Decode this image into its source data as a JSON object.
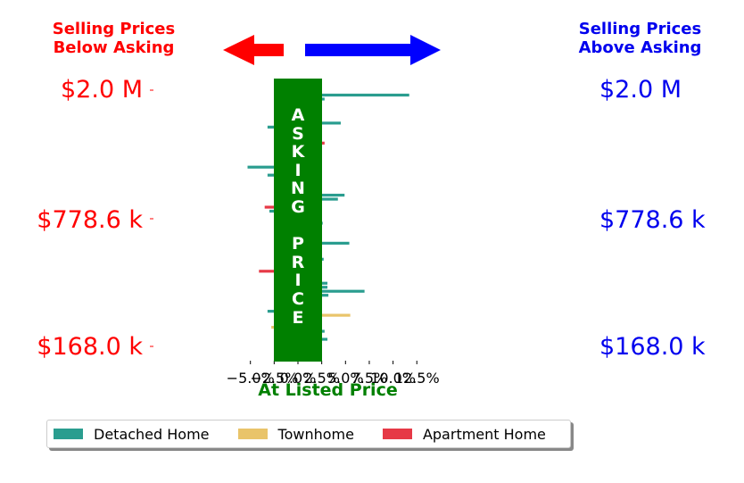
{
  "header": {
    "left_label": "Selling Prices\nBelow Asking",
    "right_label": "Selling Prices\nAbove Asking",
    "left_color": "#ff0000",
    "right_color": "#0000ee"
  },
  "arrows": {
    "left": "left-arrow",
    "right": "right-arrow",
    "left_color": "#ff0000",
    "right_color": "#0000ff"
  },
  "price_labels": {
    "top": "$2.0 M",
    "middle": "$778.6 k",
    "bottom": "$168.0 k",
    "left_color": "#ff0000",
    "right_color": "#0000ee"
  },
  "asking_band": {
    "text": "A\nS\nK\nI\nN\nG\n\nP\nR\nI\nC\nE",
    "color": "#008000"
  },
  "chart_data": {
    "type": "bar",
    "orientation": "horizontal",
    "xlabel": "At Listed Price",
    "xlim": [
      -6.5,
      13.2
    ],
    "xticks": [
      -5.0,
      -2.5,
      0.0,
      2.5,
      5.0,
      7.5,
      10.0,
      12.5
    ],
    "xtick_labels": [
      "−5.0%",
      "−2.5%",
      "0.0%",
      "2.5%",
      "5.0%",
      "7.5%",
      "10.0%",
      "12.5%"
    ],
    "colors": {
      "Detached Home": "#2a9d8f",
      "Townhome": "#e9c46a",
      "Apartment Home": "#e63946"
    },
    "legend": [
      "Detached Home",
      "Townhome",
      "Apartment Home"
    ],
    "legend_position": "bottom",
    "bars": [
      {
        "v": 1.2,
        "t": "Detached Home"
      },
      {
        "v": 11.7,
        "t": "Detached Home"
      },
      {
        "v": 2.8,
        "t": "Detached Home"
      },
      {
        "v": 1.7,
        "t": "Detached Home"
      },
      {
        "v": -1.8,
        "t": "Detached Home"
      },
      {
        "v": 1.2,
        "t": "Detached Home"
      },
      {
        "v": 1.2,
        "t": "Detached Home"
      },
      {
        "v": -1.6,
        "t": "Detached Home"
      },
      {
        "v": 4.5,
        "t": "Detached Home"
      },
      {
        "v": -3.2,
        "t": "Detached Home"
      },
      {
        "v": 1.2,
        "t": "Detached Home"
      },
      {
        "v": -1.7,
        "t": "Detached Home"
      },
      {
        "v": 1.2,
        "t": "Detached Home"
      },
      {
        "v": 2.8,
        "t": "Apartment Home"
      },
      {
        "v": 1.2,
        "t": "Detached Home"
      },
      {
        "v": 1.9,
        "t": "Detached Home"
      },
      {
        "v": 1.9,
        "t": "Detached Home"
      },
      {
        "v": -2.5,
        "t": "Detached Home"
      },
      {
        "v": 2.3,
        "t": "Detached Home"
      },
      {
        "v": -5.3,
        "t": "Detached Home"
      },
      {
        "v": -2.0,
        "t": "Detached Home"
      },
      {
        "v": -3.2,
        "t": "Detached Home"
      },
      {
        "v": -2.2,
        "t": "Detached Home"
      },
      {
        "v": 1.2,
        "t": "Detached Home"
      },
      {
        "v": 1.2,
        "t": "Detached Home"
      },
      {
        "v": 1.2,
        "t": "Detached Home"
      },
      {
        "v": 4.9,
        "t": "Detached Home"
      },
      {
        "v": 4.2,
        "t": "Detached Home"
      },
      {
        "v": 1.2,
        "t": "Detached Home"
      },
      {
        "v": -3.5,
        "t": "Apartment Home"
      },
      {
        "v": -3.0,
        "t": "Detached Home"
      },
      {
        "v": 1.2,
        "t": "Detached Home"
      },
      {
        "v": 1.2,
        "t": "Detached Home"
      },
      {
        "v": 2.6,
        "t": "Detached Home"
      },
      {
        "v": 1.2,
        "t": "Detached Home"
      },
      {
        "v": 1.2,
        "t": "Detached Home"
      },
      {
        "v": 1.2,
        "t": "Detached Home"
      },
      {
        "v": -0.6,
        "t": "Detached Home"
      },
      {
        "v": 5.4,
        "t": "Detached Home"
      },
      {
        "v": 1.2,
        "t": "Townhome"
      },
      {
        "v": -2.5,
        "t": "Detached Home"
      },
      {
        "v": 1.2,
        "t": "Townhome"
      },
      {
        "v": 2.7,
        "t": "Detached Home"
      },
      {
        "v": -0.5,
        "t": "Detached Home"
      },
      {
        "v": 1.2,
        "t": "Detached Home"
      },
      {
        "v": -4.1,
        "t": "Apartment Home"
      },
      {
        "v": -1.8,
        "t": "Detached Home"
      },
      {
        "v": 1.2,
        "t": "Detached Home"
      },
      {
        "v": 3.1,
        "t": "Detached Home"
      },
      {
        "v": 3.1,
        "t": "Detached Home"
      },
      {
        "v": 7.0,
        "t": "Detached Home"
      },
      {
        "v": 3.2,
        "t": "Detached Home"
      },
      {
        "v": 1.2,
        "t": "Detached Home"
      },
      {
        "v": 1.2,
        "t": "Detached Home"
      },
      {
        "v": 1.2,
        "t": "Apartment Home"
      },
      {
        "v": -3.2,
        "t": "Detached Home"
      },
      {
        "v": 5.5,
        "t": "Townhome"
      },
      {
        "v": 1.2,
        "t": "Detached Home"
      },
      {
        "v": 1.2,
        "t": "Detached Home"
      },
      {
        "v": -2.8,
        "t": "Townhome"
      },
      {
        "v": 2.8,
        "t": "Detached Home"
      },
      {
        "v": 2.0,
        "t": "Detached Home"
      },
      {
        "v": 3.1,
        "t": "Detached Home"
      },
      {
        "v": 1.2,
        "t": "Detached Home"
      },
      {
        "v": 1.2,
        "t": "Detached Home"
      }
    ]
  }
}
